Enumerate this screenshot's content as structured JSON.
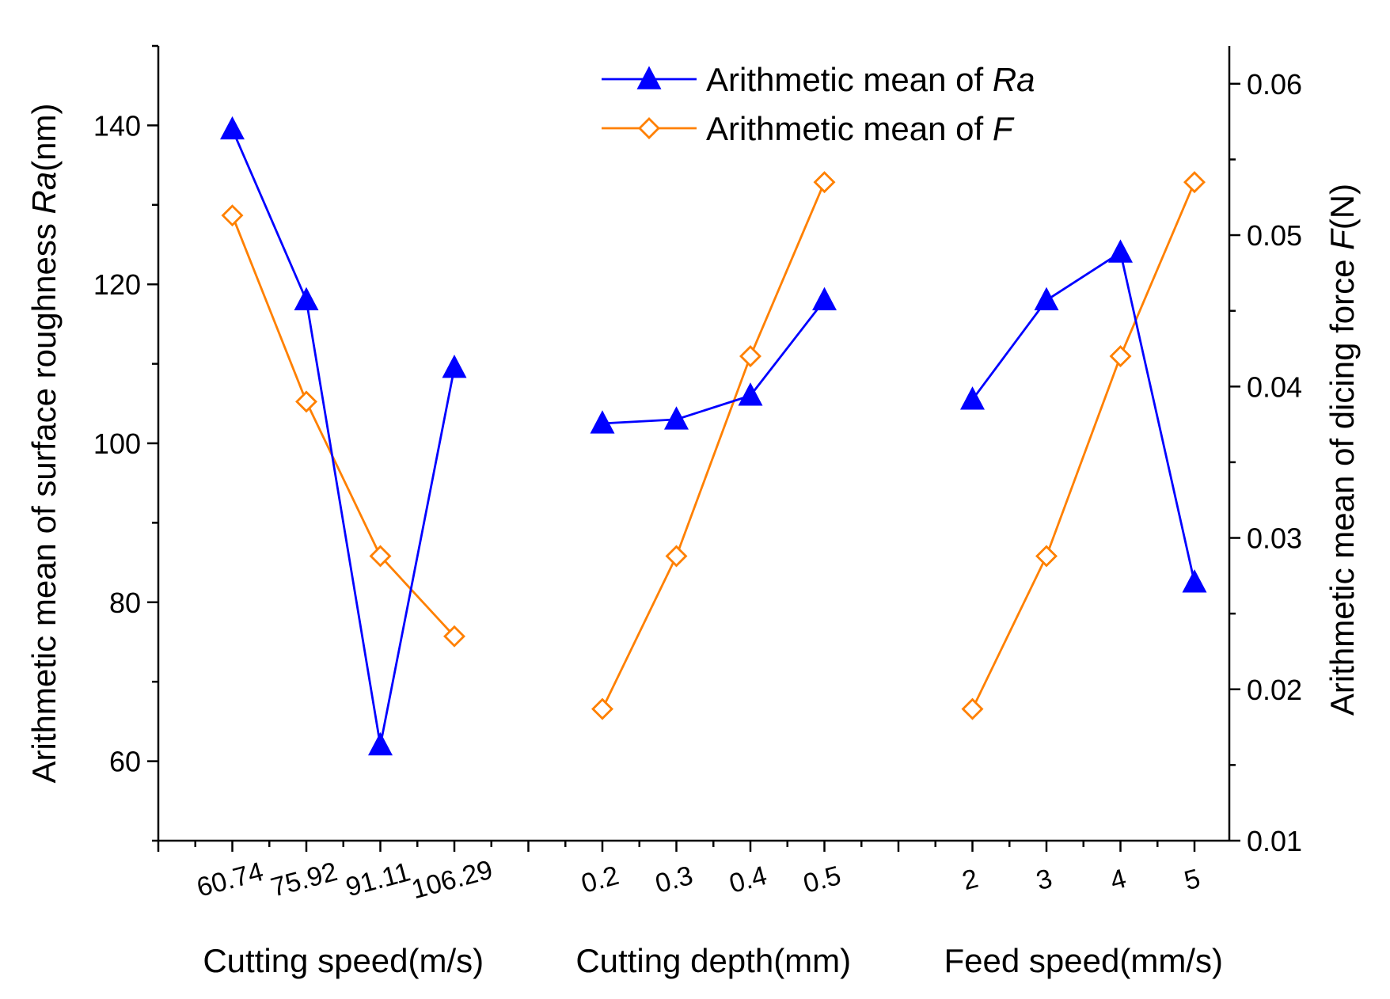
{
  "chart_data": {
    "type": "line",
    "left_axis": {
      "label_parts": [
        "Arithmetic mean of surface roughness ",
        "Ra",
        "(nm)"
      ],
      "range": [
        50,
        150
      ],
      "ticks": [
        60,
        80,
        100,
        120,
        140
      ],
      "minor_step": 10
    },
    "right_axis": {
      "label_parts": [
        "Arithmetic mean of dicing force ",
        "F",
        "(N)"
      ],
      "range": [
        0.01,
        0.0625
      ],
      "ticks": [
        0.01,
        0.02,
        0.03,
        0.04,
        0.05,
        0.06
      ],
      "minor_step": 0.005
    },
    "groups": [
      {
        "label": "Cutting speed(m/s)",
        "categories": [
          "60.74",
          "75.92",
          "91.11",
          "106.29"
        ]
      },
      {
        "label": "Cutting depth(mm)",
        "categories": [
          "0.2",
          "0.3",
          "0.4",
          "0.5"
        ]
      },
      {
        "label": "Feed speed(mm/s)",
        "categories": [
          "2",
          "3",
          "4",
          "5"
        ]
      }
    ],
    "series": [
      {
        "name_parts": [
          "Arithmetic mean of ",
          "Ra"
        ],
        "axis": "left",
        "color": "#0000ff",
        "marker": "filled-triangle",
        "values": [
          [
            139.5,
            118.0,
            62.0,
            109.5
          ],
          [
            102.5,
            103.0,
            106.0,
            118.0
          ],
          [
            105.5,
            118.0,
            124.0,
            82.5
          ]
        ]
      },
      {
        "name_parts": [
          "Arithmetic mean of ",
          "F"
        ],
        "axis": "right",
        "color": "#ff8000",
        "marker": "hollow-diamond",
        "values": [
          [
            0.0513,
            0.039,
            0.0288,
            0.0235
          ],
          [
            0.0187,
            0.0288,
            0.042,
            0.0535
          ],
          [
            0.0187,
            0.0288,
            0.042,
            0.0535
          ]
        ]
      }
    ],
    "legend_position": "top-right",
    "grid": false
  }
}
